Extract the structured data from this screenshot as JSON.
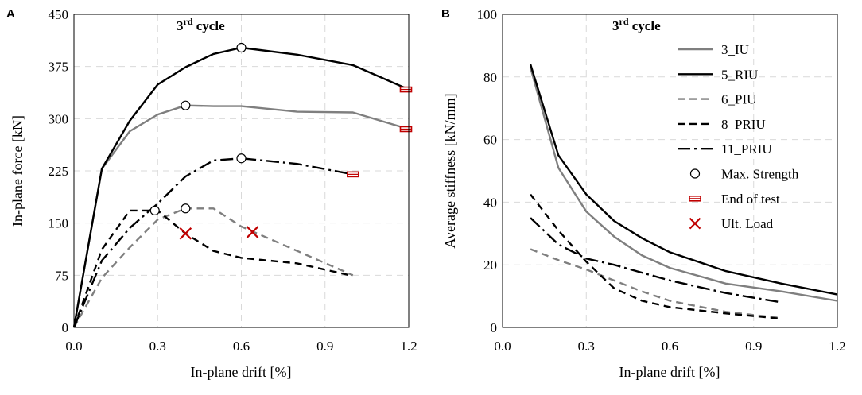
{
  "chart_data": [
    {
      "panel": "A",
      "type": "line",
      "title": "3rd cycle",
      "title_main": "3",
      "title_sup": "rd",
      "title_rest": " cycle",
      "xlabel": "In-plane drift [%]",
      "ylabel": "In-plane force [kN]",
      "xlim": [
        0,
        1.2
      ],
      "ylim": [
        0,
        450
      ],
      "xticks": [
        0,
        0.3,
        0.6,
        0.9,
        1.2
      ],
      "xtick_labels": [
        "0.0",
        "0.3",
        "0.6",
        "0.9",
        "1.2"
      ],
      "yticks": [
        0,
        75,
        150,
        225,
        300,
        375,
        450
      ],
      "ytick_labels": [
        "0",
        "75",
        "150",
        "225",
        "300",
        "375",
        "450"
      ],
      "grid": true,
      "series": [
        {
          "name": "3_IU",
          "color": "#7f7f7f",
          "dash": "solid",
          "x": [
            0,
            0.1,
            0.2,
            0.3,
            0.4,
            0.5,
            0.6,
            0.8,
            1.0,
            1.2
          ],
          "y": [
            0,
            228,
            282,
            306,
            319,
            318,
            318,
            310,
            309,
            285
          ]
        },
        {
          "name": "5_RIU",
          "color": "#000000",
          "dash": "solid",
          "x": [
            0,
            0.1,
            0.2,
            0.3,
            0.4,
            0.5,
            0.6,
            0.8,
            1.0,
            1.2
          ],
          "y": [
            0,
            228,
            297,
            349,
            374,
            393,
            402,
            392,
            377,
            342
          ]
        },
        {
          "name": "6_PIU",
          "color": "#7f7f7f",
          "dash": "dash",
          "x": [
            0,
            0.1,
            0.2,
            0.3,
            0.4,
            0.5,
            0.6,
            0.8,
            1.0
          ],
          "y": [
            0,
            71,
            115,
            155,
            171,
            171,
            145,
            110,
            75
          ]
        },
        {
          "name": "8_PRIU",
          "color": "#000000",
          "dash": "dash",
          "x": [
            0,
            0.1,
            0.2,
            0.3,
            0.4,
            0.5,
            0.6,
            0.8,
            1.0
          ],
          "y": [
            0,
            112,
            168,
            168,
            135,
            110,
            100,
            92,
            74
          ]
        },
        {
          "name": "11_PRIU",
          "color": "#000000",
          "dash": "dashdot",
          "x": [
            0,
            0.1,
            0.2,
            0.3,
            0.4,
            0.5,
            0.6,
            0.8,
            1.0
          ],
          "y": [
            0,
            96,
            143,
            178,
            217,
            240,
            243,
            235,
            220
          ]
        }
      ],
      "max_strength": [
        {
          "series": "3_IU",
          "x": 0.4,
          "y": 319
        },
        {
          "series": "5_RIU",
          "x": 0.6,
          "y": 402
        },
        {
          "series": "6_PIU",
          "x": 0.4,
          "y": 171
        },
        {
          "series": "8_PRIU",
          "x": 0.29,
          "y": 168
        },
        {
          "series": "11_PRIU",
          "x": 0.6,
          "y": 243
        }
      ],
      "end_of_test": [
        {
          "series": "3_IU",
          "x": 1.19,
          "y": 285
        },
        {
          "series": "5_RIU",
          "x": 1.19,
          "y": 342
        },
        {
          "series": "11_PRIU",
          "x": 1.0,
          "y": 220
        }
      ],
      "ult_load": [
        {
          "series": "8_PRIU",
          "x": 0.4,
          "y": 135
        },
        {
          "series": "6_PIU",
          "x": 0.64,
          "y": 137
        }
      ]
    },
    {
      "panel": "B",
      "type": "line",
      "title": "3rd cycle",
      "title_main": "3",
      "title_sup": "rd",
      "title_rest": " cycle",
      "xlabel": "In-plane drift [%]",
      "ylabel": "Average stiffness [kN/mm]",
      "xlim": [
        0,
        1.2
      ],
      "ylim": [
        0,
        100
      ],
      "xticks": [
        0,
        0.3,
        0.6,
        0.9,
        1.2
      ],
      "xtick_labels": [
        "0.0",
        "0.3",
        "0.6",
        "0.9",
        "1.2"
      ],
      "yticks": [
        0,
        20,
        40,
        60,
        80,
        100
      ],
      "ytick_labels": [
        "0",
        "20",
        "40",
        "60",
        "80",
        "100"
      ],
      "grid": true,
      "legend_position": "top-right",
      "series": [
        {
          "name": "3_IU",
          "color": "#7f7f7f",
          "dash": "solid",
          "x": [
            0.1,
            0.2,
            0.3,
            0.4,
            0.5,
            0.6,
            0.8,
            1.0,
            1.2
          ],
          "y": [
            83,
            51,
            37,
            29,
            23,
            19,
            14,
            11.5,
            8.5
          ]
        },
        {
          "name": "5_RIU",
          "color": "#000000",
          "dash": "solid",
          "x": [
            0.1,
            0.2,
            0.3,
            0.4,
            0.5,
            0.6,
            0.8,
            1.0,
            1.2
          ],
          "y": [
            84,
            55,
            42.5,
            34,
            28.5,
            24,
            18,
            14,
            10.5
          ]
        },
        {
          "name": "6_PIU",
          "color": "#7f7f7f",
          "dash": "dash",
          "x": [
            0.1,
            0.2,
            0.3,
            0.4,
            0.5,
            0.6,
            0.8,
            1.0
          ],
          "y": [
            25,
            21.5,
            18.5,
            15,
            11.5,
            8.5,
            5,
            3
          ]
        },
        {
          "name": "8_PRIU",
          "color": "#000000",
          "dash": "dash",
          "x": [
            0.1,
            0.2,
            0.3,
            0.4,
            0.5,
            0.6,
            0.8,
            1.0
          ],
          "y": [
            42.5,
            31,
            21,
            12.5,
            8.5,
            6.5,
            4.5,
            2.8
          ]
        },
        {
          "name": "11_PRIU",
          "color": "#000000",
          "dash": "dashdot",
          "x": [
            0.1,
            0.2,
            0.3,
            0.4,
            0.5,
            0.6,
            0.8,
            1.0
          ],
          "y": [
            35,
            26.5,
            22,
            20,
            17.5,
            15,
            11,
            8
          ]
        }
      ],
      "legend": [
        {
          "label": "3_IU",
          "kind": "line",
          "color": "#7f7f7f",
          "dash": "solid"
        },
        {
          "label": "5_RIU",
          "kind": "line",
          "color": "#000000",
          "dash": "solid"
        },
        {
          "label": "6_PIU",
          "kind": "line",
          "color": "#7f7f7f",
          "dash": "dash"
        },
        {
          "label": "8_PRIU",
          "kind": "line",
          "color": "#000000",
          "dash": "dash"
        },
        {
          "label": "11_PRIU",
          "kind": "line",
          "color": "#000000",
          "dash": "dashdot"
        },
        {
          "label": "Max. Strength",
          "kind": "circle"
        },
        {
          "label": "End of test",
          "kind": "end"
        },
        {
          "label": "Ult. Load",
          "kind": "cross"
        }
      ]
    }
  ],
  "colors": {
    "end_marker": "#c00000",
    "ult_marker": "#c00000",
    "gray": "#7f7f7f",
    "black": "#000000"
  }
}
